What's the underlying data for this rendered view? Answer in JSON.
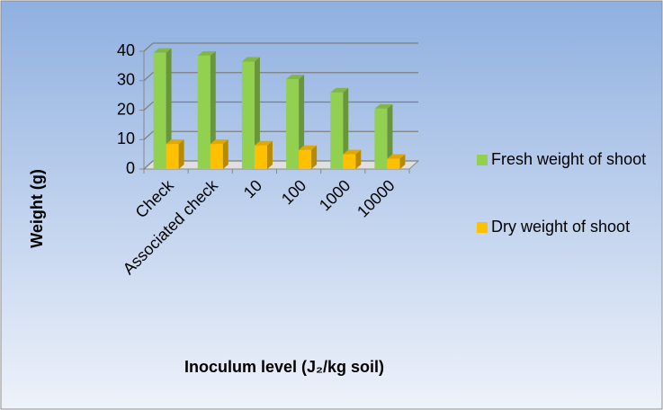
{
  "chart_data": {
    "type": "bar3d",
    "categories": [
      "Check",
      "Associated check",
      "10",
      "100",
      "1000",
      "10000"
    ],
    "series": [
      {
        "name": "Fresh weight of shoot",
        "color": "#92d050",
        "values": [
          39.5,
          38.5,
          36.5,
          30.5,
          26,
          20.5
        ]
      },
      {
        "name": "Dry weight of shoot",
        "color": "#ffc000",
        "values": [
          8.5,
          8.5,
          8,
          6.5,
          5,
          3.5
        ]
      }
    ],
    "ylim": [
      0,
      40
    ],
    "yticks": [
      0,
      10,
      20,
      30,
      40
    ],
    "grid": true,
    "xlabel": "Inoculum level (J₂/kg soil)",
    "ylabel": "Weight (g)",
    "legend": "right"
  }
}
